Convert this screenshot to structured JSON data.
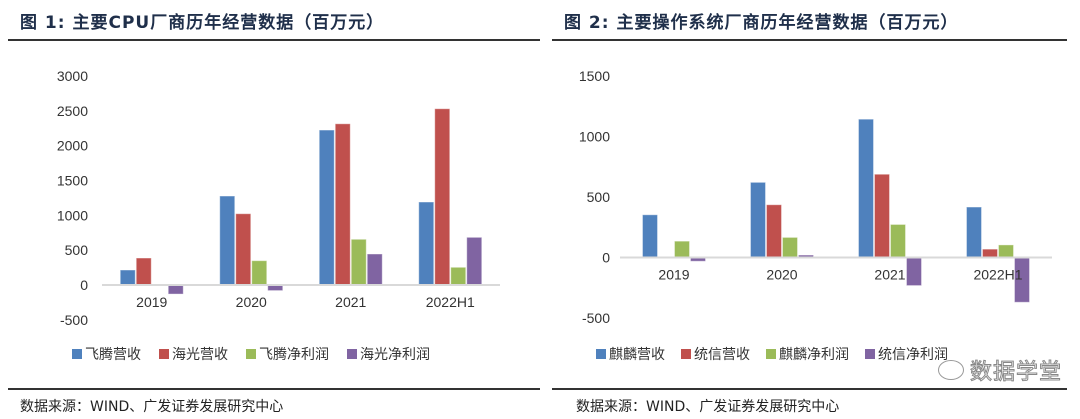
{
  "panels": [
    {
      "title": "图  1:  主要CPU厂商历年经营数据（百万元）",
      "source": "数据来源：WIND、广发证券发展研究中心"
    },
    {
      "title": "图  2:  主要操作系统厂商历年经营数据（百万元）",
      "source": "数据来源：WIND、广发证券发展研究中心",
      "watermark": "数据学堂"
    }
  ],
  "chart_data": [
    {
      "type": "bar",
      "title": "主要CPU厂商历年经营数据（百万元）",
      "xlabel": "",
      "ylabel": "",
      "categories": [
        "2019",
        "2020",
        "2021",
        "2022H1"
      ],
      "ylim": [
        -500,
        3000
      ],
      "yticks": [
        -500,
        0,
        500,
        1000,
        1500,
        2000,
        2500,
        3000
      ],
      "legend_position": "bottom",
      "grid": false,
      "series": [
        {
          "name": "飞腾营收",
          "color": "#4f81bd",
          "values": [
            215,
            1277,
            2224,
            1191
          ]
        },
        {
          "name": "海光营收",
          "color": "#c0504d",
          "values": [
            387,
            1023,
            2314,
            2530
          ]
        },
        {
          "name": "飞腾净利润",
          "color": "#9bbb59",
          "values": [
            null,
            349,
            656,
            254
          ]
        },
        {
          "name": "海光净利润",
          "color": "#8064a2",
          "values": [
            -130,
            -80,
            445,
            684
          ]
        }
      ]
    },
    {
      "type": "bar",
      "title": "主要操作系统厂商历年经营数据（百万元）",
      "xlabel": "",
      "ylabel": "",
      "categories": [
        "2019",
        "2020",
        "2021",
        "2022H1"
      ],
      "ylim": [
        -500,
        1500
      ],
      "yticks": [
        -500,
        0,
        500,
        1000,
        1500
      ],
      "legend_position": "bottom",
      "grid": false,
      "series": [
        {
          "name": "麒麟营收",
          "color": "#4f81bd",
          "values": [
            353,
            621,
            1143,
            417
          ]
        },
        {
          "name": "统信营收",
          "color": "#c0504d",
          "values": [
            null,
            436,
            688,
            69
          ]
        },
        {
          "name": "麒麟净利润",
          "color": "#9bbb59",
          "values": [
            135,
            166,
            273,
            104
          ]
        },
        {
          "name": "统信净利润",
          "color": "#8064a2",
          "values": [
            -31,
            20,
            -232,
            -370
          ]
        }
      ]
    }
  ]
}
